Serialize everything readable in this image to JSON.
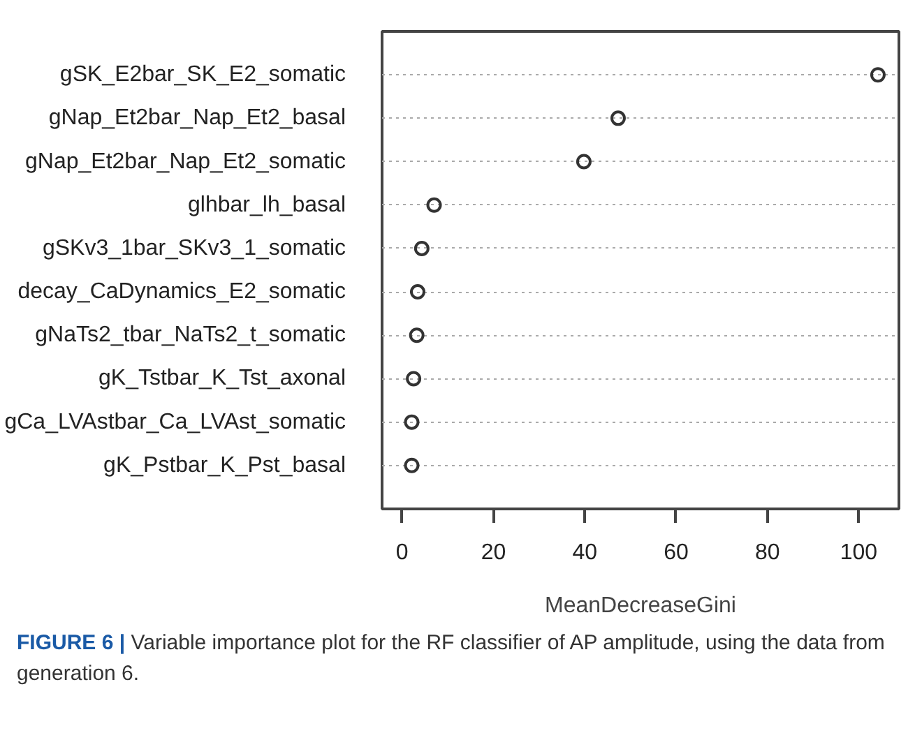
{
  "chart_data": {
    "type": "scatter",
    "orientation": "horizontal",
    "categories": [
      "gSK_E2bar_SK_E2_somatic",
      "gNap_Et2bar_Nap_Et2_basal",
      "gNap_Et2bar_Nap_Et2_somatic",
      "glhbar_lh_basal",
      "gSKv3_1bar_SKv3_1_somatic",
      "decay_CaDynamics_E2_somatic",
      "gNaTs2_tbar_NaTs2_t_somatic",
      "gK_Tstbar_K_Tst_axonal",
      "gCa_LVAstbar_Ca_LVAst_somatic",
      "gK_Pstbar_K_Pst_basal"
    ],
    "values": [
      104.2,
      47.3,
      39.8,
      7.0,
      4.3,
      3.4,
      3.2,
      2.5,
      2.1,
      2.1
    ],
    "color": "#333333",
    "marker": "circle",
    "grid": "y",
    "xlim": [
      -4.4,
      108.8
    ],
    "xticks": [
      0,
      20,
      40,
      60,
      80,
      100
    ],
    "xlabel": "MeanDecreaseGini",
    "annotations": [
      "FIGURE 6 | Variable importance plot for the RF classifier of AP amplitude, using the data from generation 6."
    ]
  }
}
